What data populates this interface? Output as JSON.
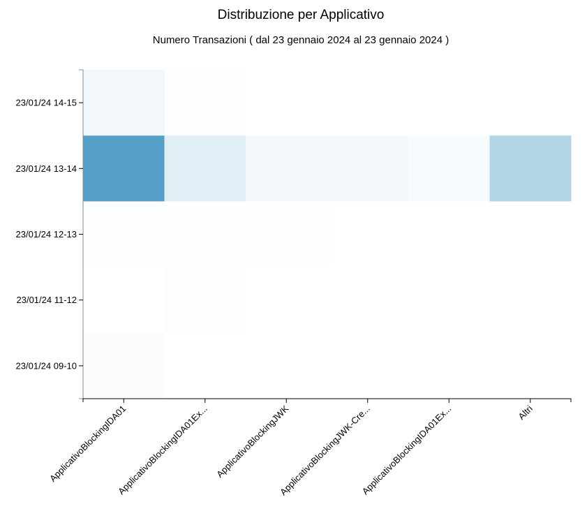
{
  "chart_data": {
    "type": "heatmap",
    "title": "Distribuzione per Applicativo",
    "subtitle": "Numero Transazioni ( dal 23 gennaio 2024 al 23 gennaio 2024 )",
    "xlabel": "",
    "ylabel": "",
    "x_categories": [
      "ApplicativoBlockingIDA01",
      "ApplicativoBlockingIDA01Ex...",
      "ApplicativoBlockingJWK",
      "ApplicativoBlockingJWK-Cre...",
      "ApplicativoBlockingIDA01Ex...",
      "Altri"
    ],
    "y_categories": [
      "23/01/24 14-15",
      "23/01/24 13-14",
      "23/01/24 12-13",
      "23/01/24 11-12",
      "23/01/24 09-10"
    ],
    "values": [
      [
        0.08,
        0.01,
        0.0,
        0.0,
        0.0,
        0.0
      ],
      [
        1.0,
        0.18,
        0.08,
        0.08,
        0.04,
        0.45
      ],
      [
        0.02,
        0.01,
        0.01,
        0.0,
        0.0,
        0.0
      ],
      [
        0.0,
        0.02,
        0.0,
        0.0,
        0.0,
        0.0
      ],
      [
        0.03,
        0.0,
        0.0,
        0.0,
        0.0,
        0.0
      ]
    ],
    "color_min": "#ffffff",
    "color_max": "#539fc7",
    "grid": false
  }
}
